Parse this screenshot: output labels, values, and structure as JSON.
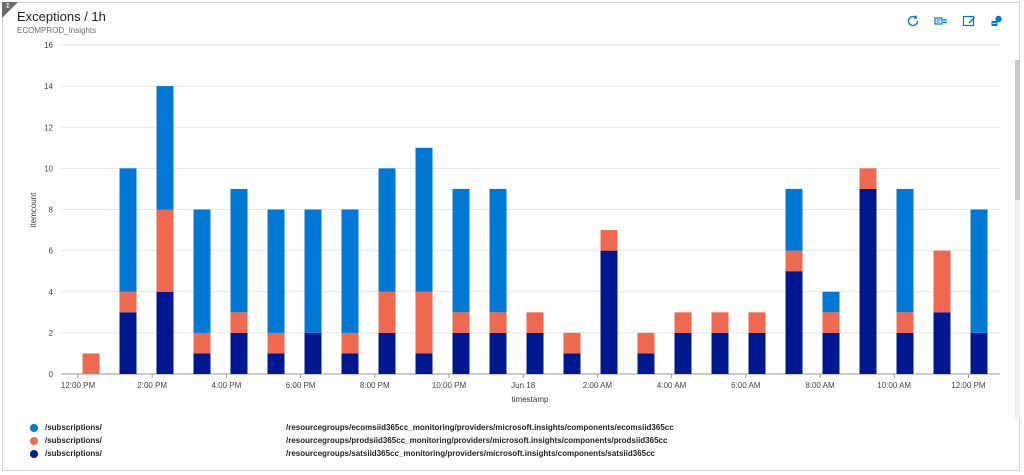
{
  "tile": {
    "title": "Exceptions / 1h",
    "subtitle": "ECOMPROD_Insights"
  },
  "icons": {
    "corner": "pin-corner-icon",
    "refresh": "refresh-icon",
    "query": "logs-query-icon",
    "edit": "edit-icon",
    "share": "share-icon"
  },
  "colors": {
    "ecoms": "#0078d4",
    "prods": "#ef6950",
    "satsi": "#00188f",
    "grid": "#e6e6e6",
    "axis": "#555555"
  },
  "chart_data": {
    "type": "bar",
    "stacked": true,
    "xlabel": "timestamp",
    "ylabel": "itemcount",
    "ylim": [
      0,
      16
    ],
    "yticks": [
      0,
      2,
      4,
      6,
      8,
      10,
      12,
      14,
      16
    ],
    "grid": true,
    "legend_position": "bottom-left",
    "x_tick_labels": [
      "12:00 PM",
      "2:00 PM",
      "4:00 PM",
      "6:00 PM",
      "8:00 PM",
      "10:00 PM",
      "Jun 18",
      "2:00 AM",
      "4:00 AM",
      "6:00 AM",
      "8:00 AM",
      "10:00 AM",
      "12:00 PM"
    ],
    "series": [
      {
        "name": "/subscriptions/ /resourcegroups/satsiid365cc_monitoring/providers/microsoft.insights/components/satsiid365cc",
        "name_left": "/subscriptions/",
        "name_right": "/resourcegroups/satsiid365cc_monitoring/providers/microsoft.insights/components/satsiid365cc",
        "color": "#00188f",
        "values": [
          0,
          3,
          4,
          1,
          2,
          1,
          2,
          1,
          2,
          1,
          2,
          2,
          2,
          1,
          6,
          1,
          2,
          2,
          2,
          5,
          2,
          9,
          2,
          3,
          2
        ]
      },
      {
        "name": "/subscriptions/ /resourcegroups/prodsiid365cc_monitoring/providers/microsoft.insights/components/prodsiid365cc",
        "name_left": "/subscriptions/",
        "name_right": "/resourcegroups/prodsiid365cc_monitoring/providers/microsoft.insights/components/prodsiid365cc",
        "color": "#ef6950",
        "values": [
          1,
          1,
          4,
          1,
          1,
          1,
          0,
          1,
          2,
          3,
          1,
          1,
          1,
          1,
          1,
          1,
          1,
          1,
          1,
          1,
          1,
          1,
          1,
          3,
          0
        ]
      },
      {
        "name": "/subscriptions/ /resourcegroups/ecomsiid365cc_monitoring/providers/microsoft.insights/components/ecomsiid365cc",
        "name_left": "/subscriptions/",
        "name_right": "/resourcegroups/ecomsiid365cc_monitoring/providers/microsoft.insights/components/ecomsiid365cc",
        "color": "#0078d4",
        "values": [
          0,
          6,
          6,
          6,
          6,
          6,
          6,
          6,
          6,
          7,
          6,
          6,
          0,
          0,
          0,
          0,
          0,
          0,
          0,
          3,
          1,
          0,
          6,
          0,
          6
        ]
      }
    ]
  }
}
